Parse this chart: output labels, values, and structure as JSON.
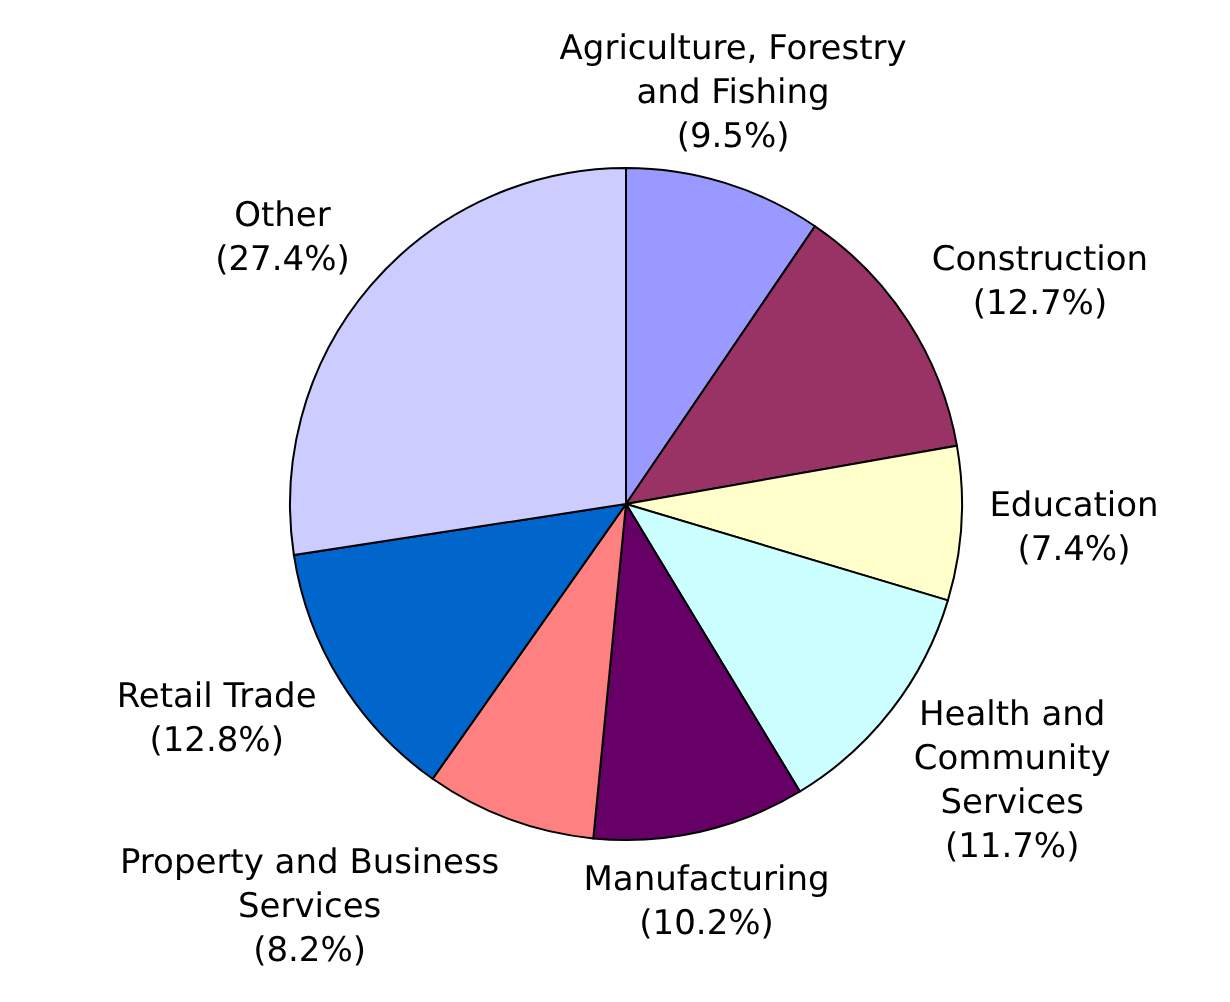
{
  "chart_data": {
    "type": "pie",
    "categories": [
      "Agriculture, Forestry and Fishing",
      "Construction",
      "Education",
      "Health and Community Services",
      "Manufacturing",
      "Property and Business Services",
      "Retail Trade",
      "Other"
    ],
    "values": [
      9.5,
      12.7,
      7.4,
      11.7,
      10.2,
      8.2,
      12.8,
      27.4
    ],
    "value_labels": [
      "(9.5%)",
      "(12.7%)",
      "(7.4%)",
      "(11.7%)",
      "(10.2%)",
      "(8.2%)",
      "(12.8%)",
      "(27.4%)"
    ],
    "colors": [
      "#9999ff",
      "#993366",
      "#ffffcc",
      "#ccffff",
      "#660066",
      "#ff8080",
      "#0066cc",
      "#ccccff"
    ]
  }
}
